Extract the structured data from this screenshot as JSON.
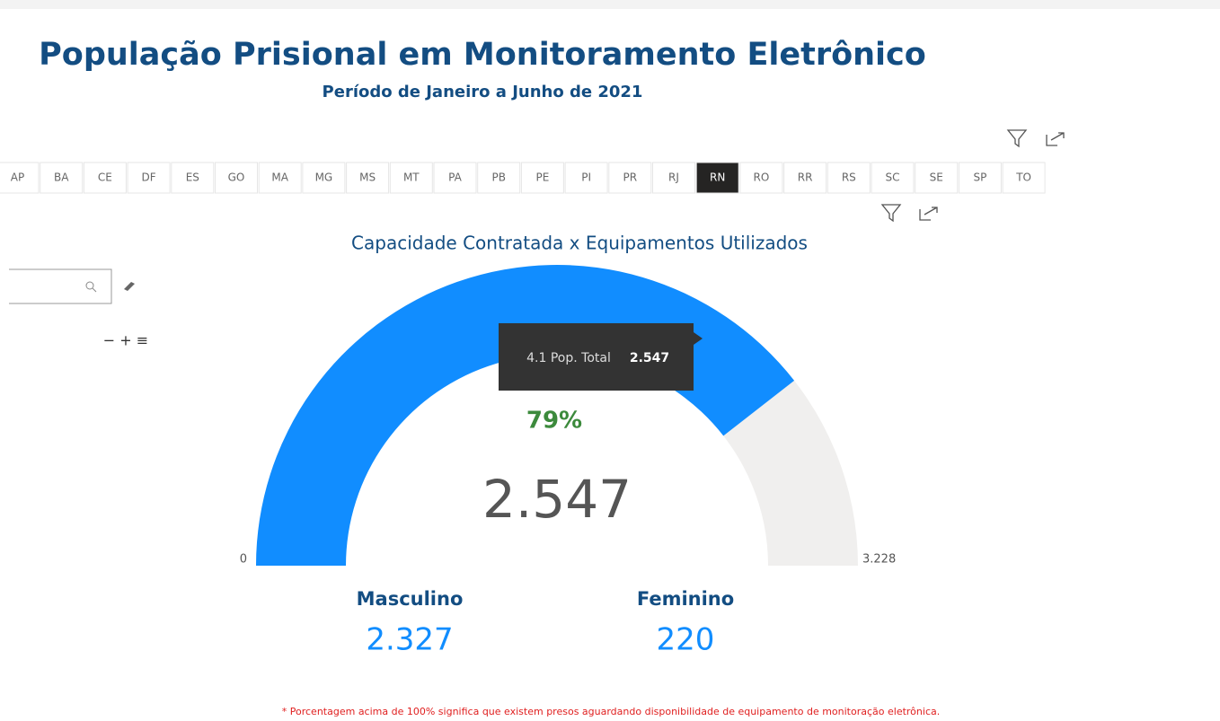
{
  "header": {
    "title": "População Prisional em Monitoramento Eletrônico",
    "subtitle": "Período de Janeiro a Junho de 2021"
  },
  "state_tabs": [
    "AP",
    "BA",
    "CE",
    "DF",
    "ES",
    "GO",
    "MA",
    "MG",
    "MS",
    "MT",
    "PA",
    "PB",
    "PE",
    "PI",
    "PR",
    "RJ",
    "RN",
    "RO",
    "RR",
    "RS",
    "SC",
    "SE",
    "SP",
    "TO"
  ],
  "selected_tab": 16,
  "gauge": {
    "title": "Capacidade Contratada x Equipamentos Utilizados",
    "min": 0,
    "max": {
      "value": 3228,
      "label": "3.228"
    },
    "value": {
      "value": 2547,
      "label": "2.547"
    },
    "percent": {
      "value": 79,
      "label": "79%"
    },
    "color": "#118dff",
    "track_color": "#f0efee"
  },
  "tooltip": {
    "name": "4.1 Pop. Total",
    "value": "2.547"
  },
  "breakdown": [
    {
      "name": "Masculino",
      "value": {
        "value": 2327,
        "label": "2.327"
      }
    },
    {
      "name": "Feminino",
      "value": {
        "value": 220,
        "label": "220"
      }
    }
  ],
  "footnote": "* Porcentagem acima de 100% significa que existem presos aguardando disponibilidade de equipamento de monitoração eletrônica."
}
